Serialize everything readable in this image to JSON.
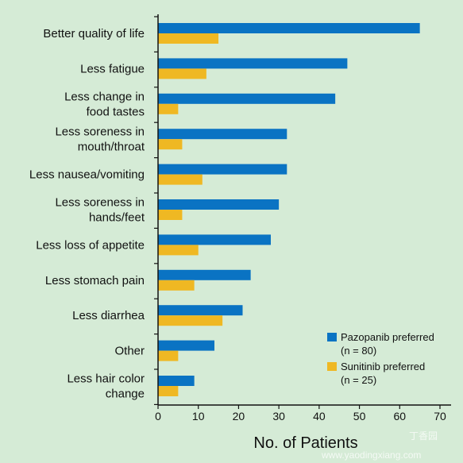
{
  "chart_data": {
    "type": "bar",
    "orientation": "horizontal",
    "categories": [
      [
        "Better quality of life"
      ],
      [
        "Less fatigue"
      ],
      [
        "Less change in",
        "food tastes"
      ],
      [
        "Less soreness in",
        "mouth/throat"
      ],
      [
        "Less nausea/vomiting"
      ],
      [
        "Less soreness in",
        "hands/feet"
      ],
      [
        "Less loss of appetite"
      ],
      [
        "Less stomach pain"
      ],
      [
        "Less diarrhea"
      ],
      [
        "Other"
      ],
      [
        "Less hair color",
        "change"
      ]
    ],
    "series": [
      {
        "name": [
          "Pazopanib preferred",
          "(n = 80)"
        ],
        "color": "#0a73c3",
        "values": [
          65,
          47,
          44,
          32,
          32,
          30,
          28,
          23,
          21,
          14,
          9
        ]
      },
      {
        "name": [
          "Sunitinib preferred",
          "(n = 25)"
        ],
        "color": "#efb823",
        "values": [
          15,
          12,
          5,
          6,
          11,
          6,
          10,
          9,
          16,
          5,
          5
        ]
      }
    ],
    "xlabel": "No. of Patients",
    "ylabel": "",
    "xlim": [
      0,
      70
    ],
    "xticks": [
      0,
      10,
      20,
      30,
      40,
      50,
      60,
      70
    ],
    "grid": false,
    "legend_position": "bottom-right"
  },
  "watermark": {
    "text": "丁香园",
    "url": "www.yaodingxiang.com"
  }
}
